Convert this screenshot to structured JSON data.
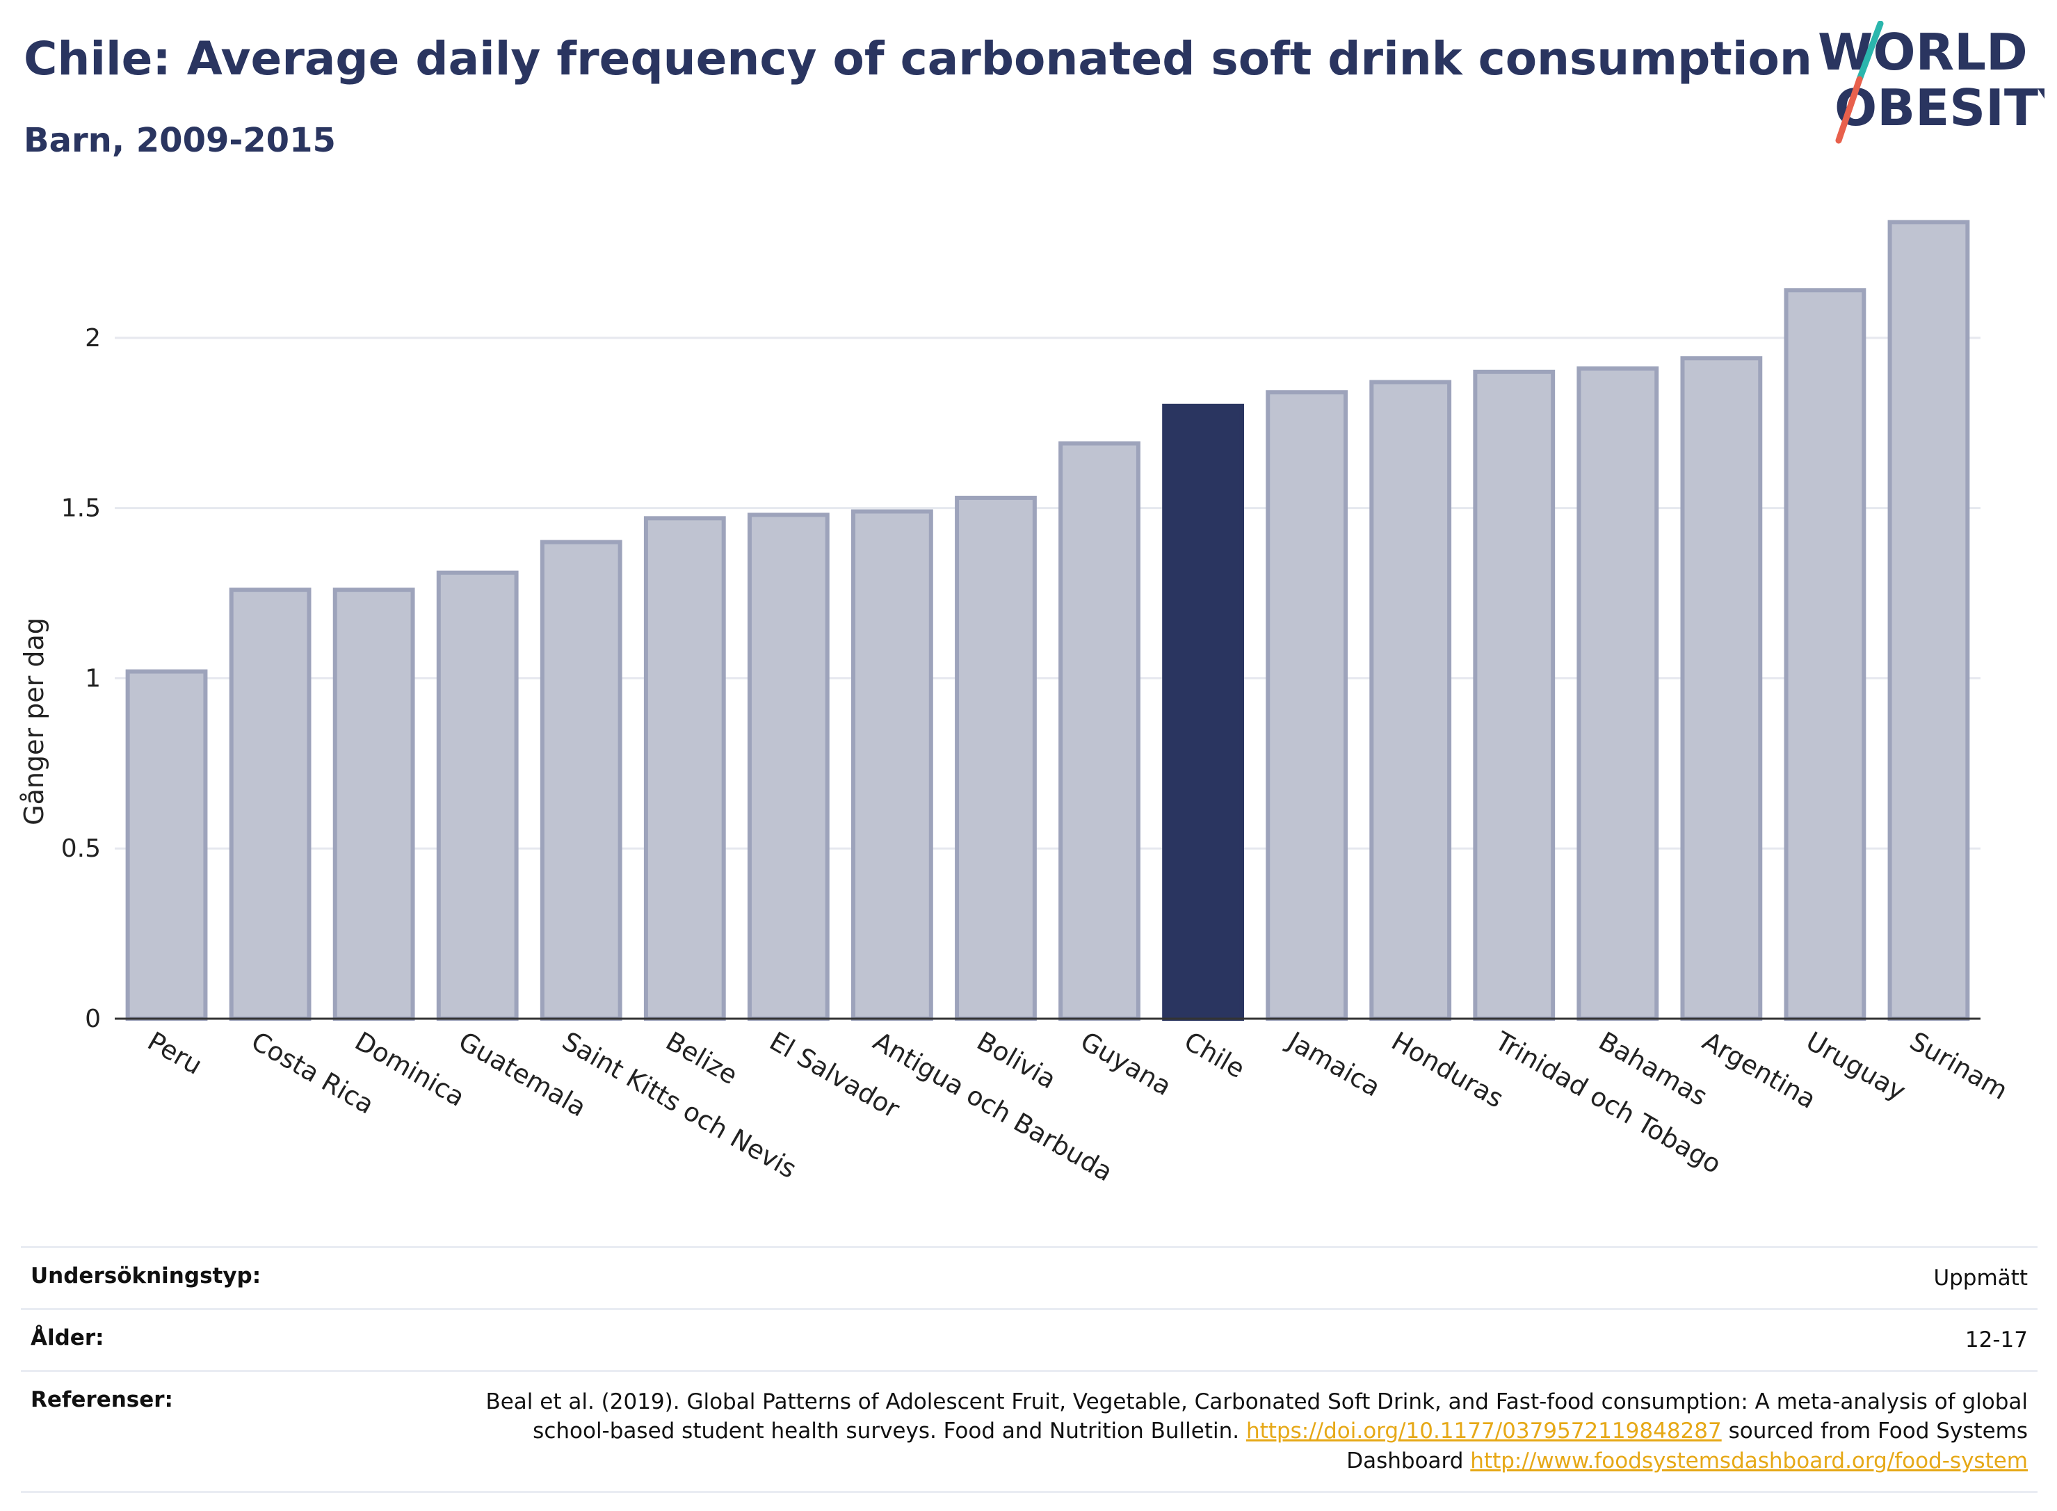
{
  "header": {
    "title": "Chile: Average daily frequency of carbonated soft drink consumption",
    "subtitle": "Barn, 2009-2015",
    "logo_line1": "WORLD",
    "logo_line2": "OBESITY"
  },
  "colors": {
    "highlight": "#2a3560",
    "bar": "#bfc3d1",
    "bar_edge": "#9da3bb",
    "text_dark": "#2a3560",
    "link": "#e6a817",
    "logo_accent_teal": "#2bb6ad",
    "logo_accent_coral": "#e8604c"
  },
  "chart_data": {
    "type": "bar",
    "categories": [
      "Peru",
      "Costa Rica",
      "Dominica",
      "Guatemala",
      "Saint Kitts och Nevis",
      "Belize",
      "El Salvador",
      "Antigua och Barbuda",
      "Bolivia",
      "Guyana",
      "Chile",
      "Jamaica",
      "Honduras",
      "Trinidad och Tobago",
      "Bahamas",
      "Argentina",
      "Uruguay",
      "Surinam"
    ],
    "values": [
      1.02,
      1.26,
      1.26,
      1.31,
      1.4,
      1.47,
      1.48,
      1.49,
      1.53,
      1.69,
      1.8,
      1.84,
      1.87,
      1.9,
      1.91,
      1.94,
      2.14,
      2.34
    ],
    "highlight": "Chile",
    "ylabel": "Gånger per dag",
    "xlabel": "",
    "ylim": [
      0,
      2.4
    ],
    "yticks": [
      0,
      0.5,
      1,
      1.5,
      2
    ],
    "ytick_labels": [
      "0",
      "0.5",
      "1",
      "1.5",
      "2"
    ],
    "grid": true
  },
  "meta": {
    "survey_type_label": "Undersökningstyp:",
    "survey_type_value": "Uppmätt",
    "age_label": "Ålder:",
    "age_value": "12-17",
    "ref_label": "Referenser:",
    "ref_text_1": "Beal et al. (2019). Global Patterns of Adolescent Fruit, Vegetable, Carbonated Soft Drink, and Fast-food consumption: A meta-analysis of global school-based student health surveys. Food and Nutrition Bulletin.",
    "ref_link_1": "https://doi.org/10.1177/0379572119848287",
    "ref_text_2": "sourced from Food Systems Dashboard",
    "ref_link_2": "http://www.foodsystemsdashboard.org/food-system"
  }
}
